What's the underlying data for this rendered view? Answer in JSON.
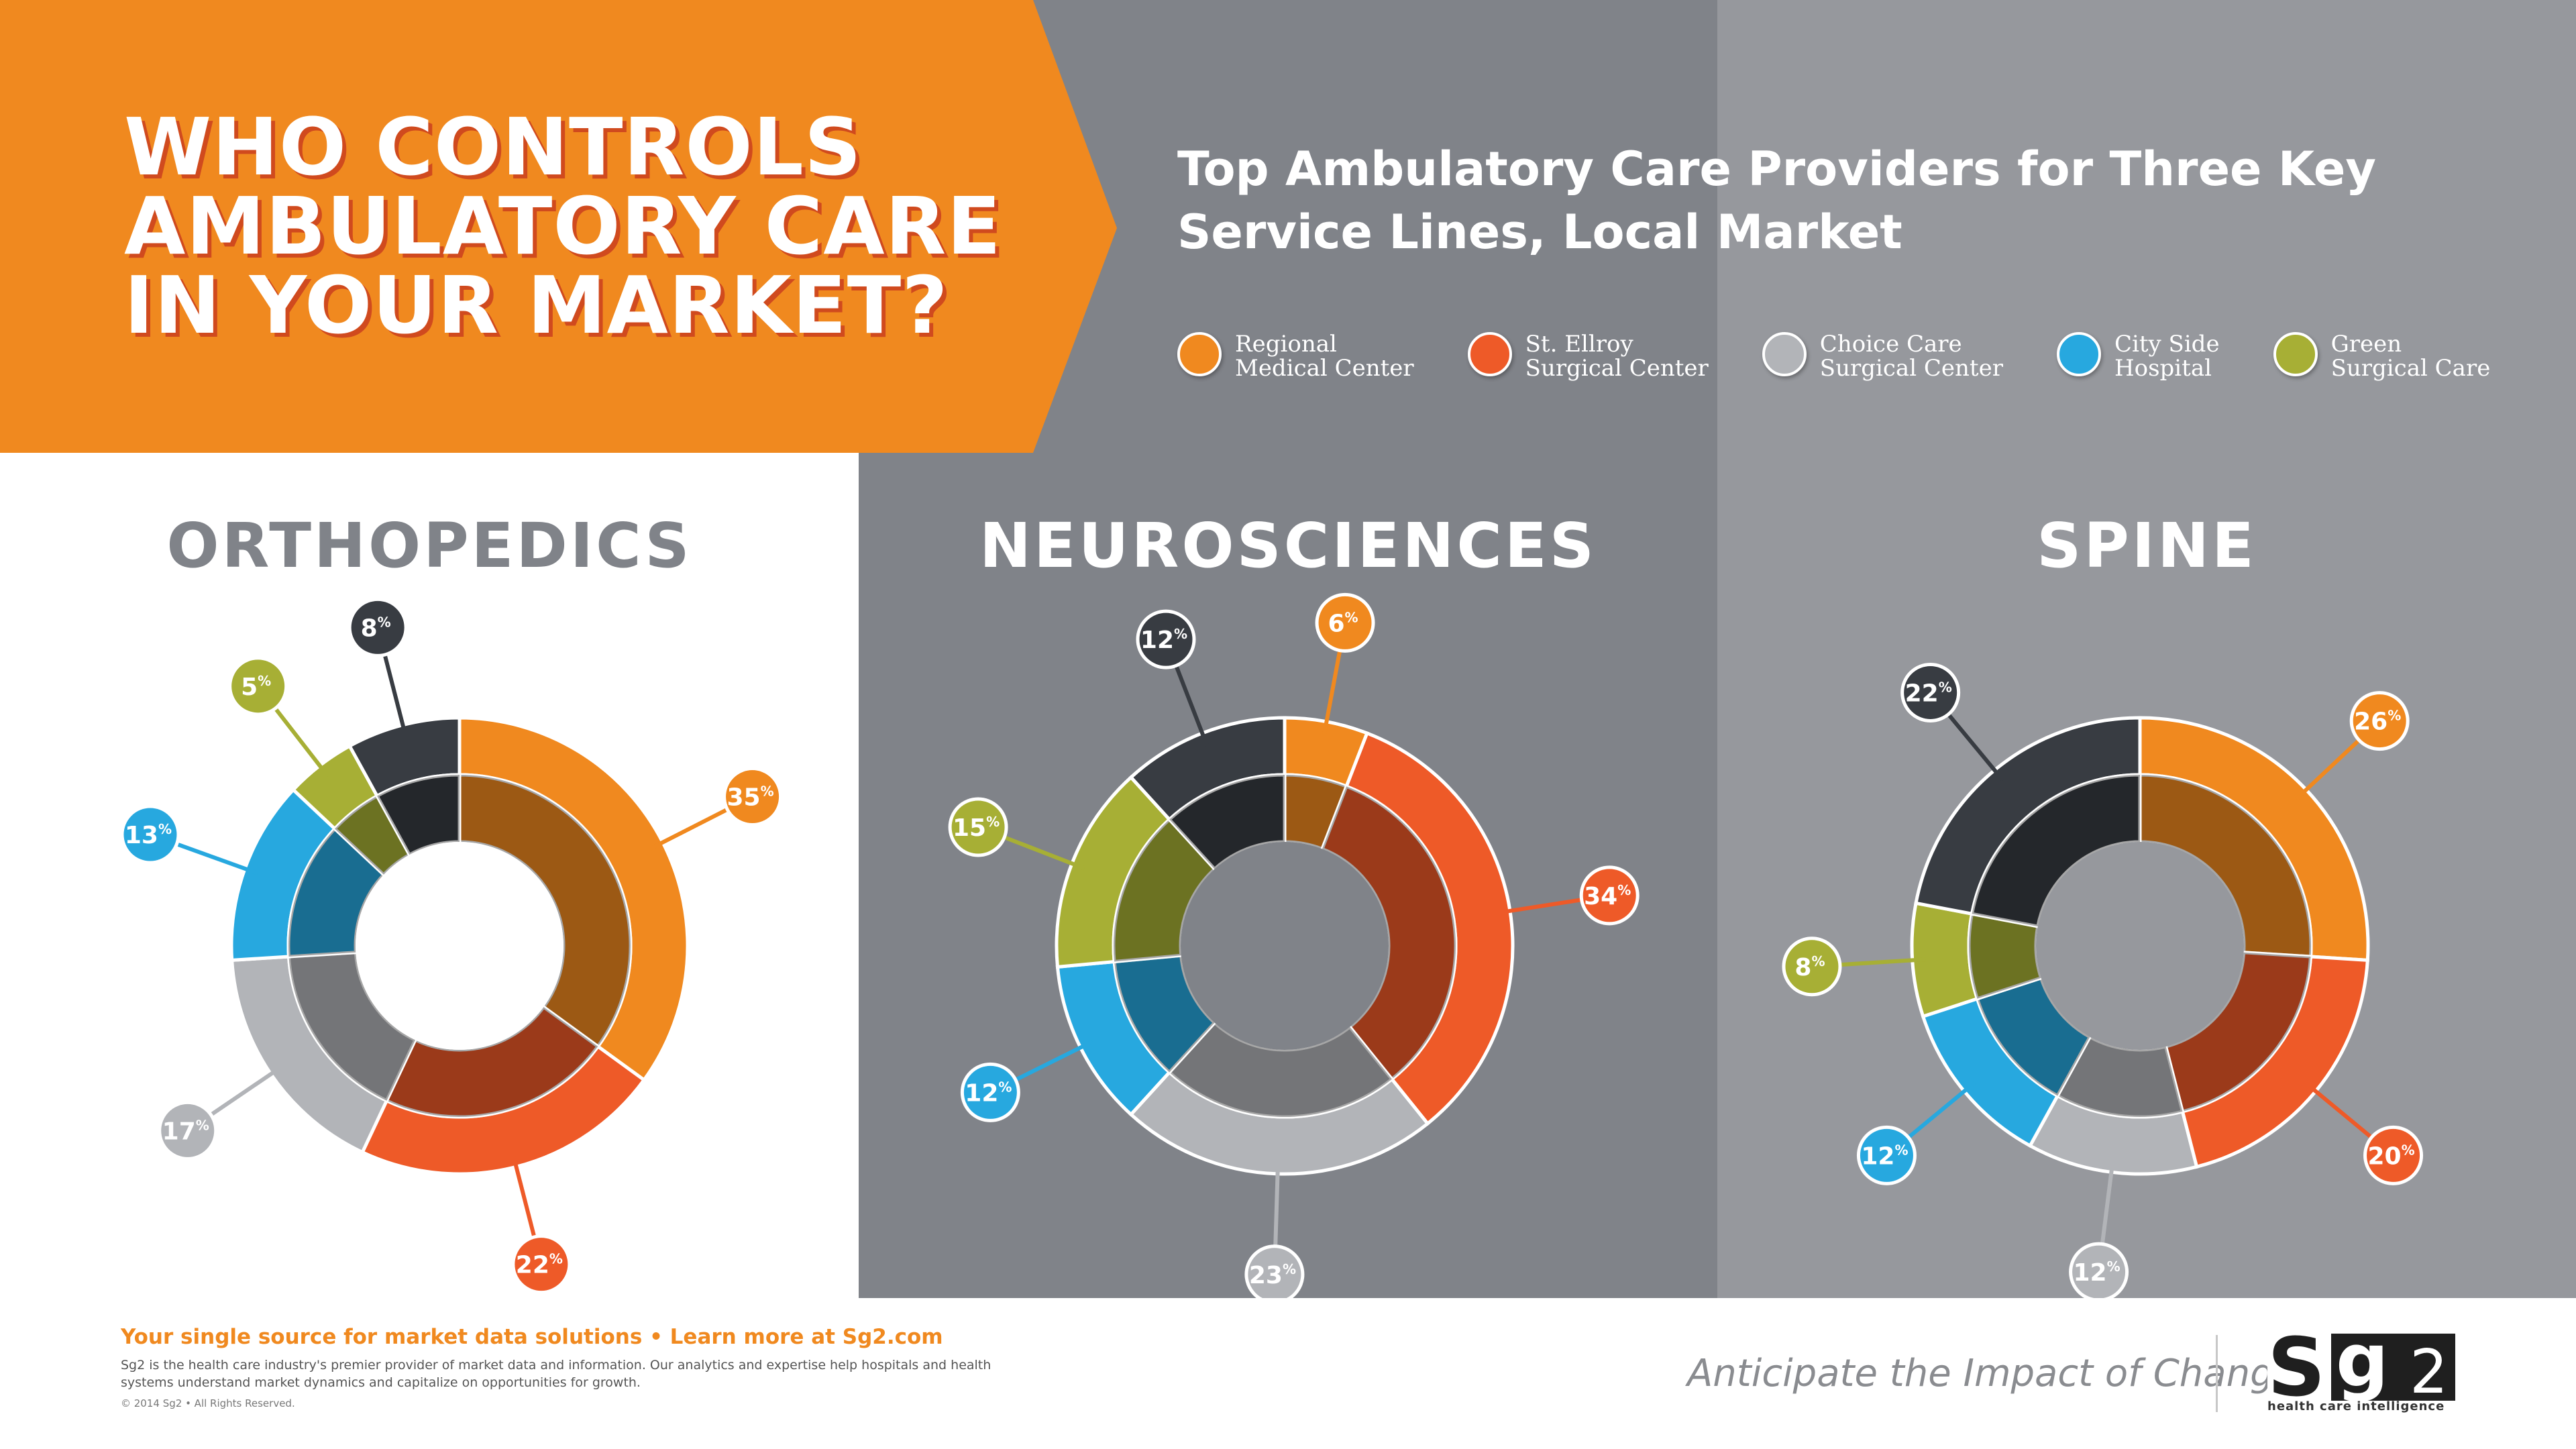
{
  "headline": [
    "WHO CONTROLS",
    "AMBULATORY CARE",
    "IN YOUR MARKET?"
  ],
  "subtitle": "Top Ambulatory Care Providers for Three Key Service Lines, Local Market",
  "colors": {
    "banner": "#f0891f",
    "regional": "#f0891f",
    "ellroy": "#ee5a28",
    "choice": "#b2b4b8",
    "cityside": "#27a8df",
    "green": "#a7af35",
    "other": "#383c42"
  },
  "legend": [
    {
      "label": "Regional\nMedical Center",
      "color": "#f0891f"
    },
    {
      "label": "St. Ellroy\nSurgical Center",
      "color": "#ee5a28"
    },
    {
      "label": "Choice Care\nSurgical Center",
      "color": "#b2b4b8"
    },
    {
      "label": "City Side\nHospital",
      "color": "#27a8df"
    },
    {
      "label": "Green\nSurgical Care",
      "color": "#a7af35"
    }
  ],
  "chart_data": [
    {
      "type": "pie",
      "title": "ORTHOPEDICS",
      "unit": "%",
      "slices": [
        {
          "label": "Regional Medical Center",
          "value": 35
        },
        {
          "label": "St. Ellroy Surgical Center",
          "value": 22
        },
        {
          "label": "Choice Care Surgical Center",
          "value": 17
        },
        {
          "label": "City Side Hospital",
          "value": 13
        },
        {
          "label": "Green Surgical Care",
          "value": 5
        },
        {
          "label": "",
          "value": 8
        }
      ]
    },
    {
      "type": "pie",
      "title": "NEUROSCIENCES",
      "unit": "%",
      "slices": [
        {
          "label": "Regional Medical Center",
          "value": 6
        },
        {
          "label": "St. Ellroy Surgical Center",
          "value": 34
        },
        {
          "label": "Choice Care Surgical Center",
          "value": 23
        },
        {
          "label": "City Side Hospital",
          "value": 12
        },
        {
          "label": "Green Surgical Care",
          "value": 15
        },
        {
          "label": "",
          "value": 12
        }
      ]
    },
    {
      "type": "pie",
      "title": "SPINE",
      "unit": "%",
      "slices": [
        {
          "label": "Regional Medical Center",
          "value": 26
        },
        {
          "label": "St. Ellroy Surgical Center",
          "value": 20
        },
        {
          "label": "Choice Care Surgical Center",
          "value": 12
        },
        {
          "label": "City Side Hospital",
          "value": 12
        },
        {
          "label": "Green Surgical Care",
          "value": 8
        },
        {
          "label": "",
          "value": 22
        }
      ]
    }
  ],
  "footer": {
    "tagline_top": "Your single source for market data solutions • Learn more at Sg2.com",
    "description": "Sg2 is the health care industry's premier provider of market data and information. Our analytics and expertise help hospitals and health systems understand market dynamics and capitalize on opportunities for growth.",
    "copyright": "© 2014 Sg2 • All Rights Reserved.",
    "slogan": "Anticipate the Impact of Change",
    "logo_sub": "health care intelligence"
  }
}
